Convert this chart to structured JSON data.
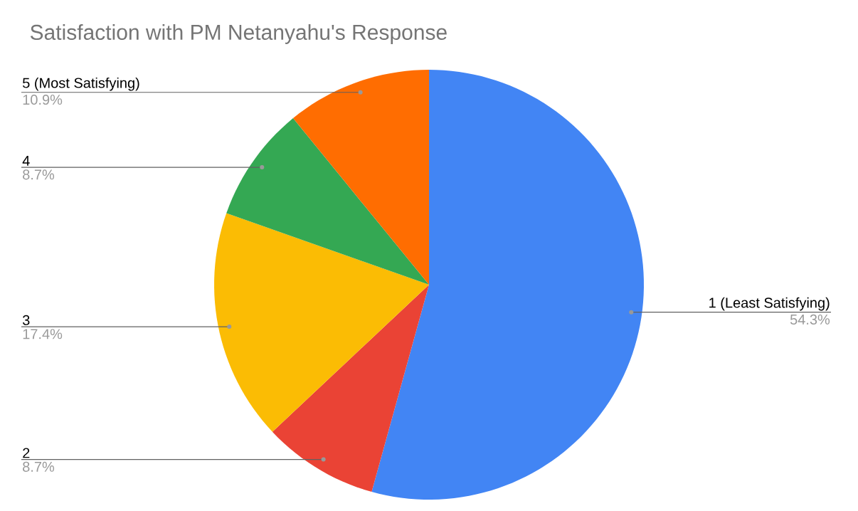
{
  "chart_data": {
    "type": "pie",
    "title": "Satisfaction with PM Netanyahu's Response",
    "categories": [
      "1 (Least Satisfying)",
      "2",
      "3",
      "4",
      "5 (Most Satisfying)"
    ],
    "values": [
      54.3,
      8.7,
      17.4,
      8.7,
      10.9
    ],
    "value_labels": [
      "54.3%",
      "8.7%",
      "17.4%",
      "8.7%",
      "10.9%"
    ],
    "colors": [
      "#4285f4",
      "#ea4335",
      "#fbbc04",
      "#34a853",
      "#ff6d01"
    ],
    "legend": false
  }
}
